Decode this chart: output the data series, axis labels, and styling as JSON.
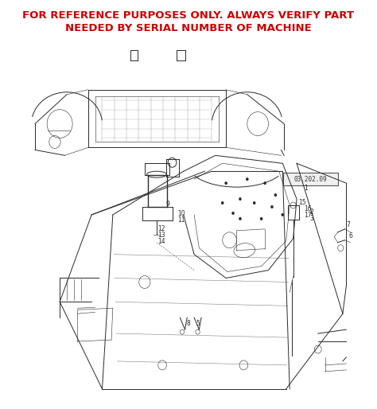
{
  "title_line1": "FOR REFERENCE PURPOSES ONLY. ALWAYS VERIFY PART",
  "title_line2": "NEEDED BY SERIAL NUMBER OF MACHINE",
  "title_color": "#CC0000",
  "title_fontsize": 9.5,
  "title_font_weight": "bold",
  "background_color": "#FFFFFF",
  "fig_width": 4.74,
  "fig_height": 5.14,
  "dpi": 100,
  "ref_label": "03.202.09",
  "line_color": "#2a2a2a",
  "lw_main": 0.7,
  "lw_thin": 0.4,
  "lw_thick": 1.0
}
